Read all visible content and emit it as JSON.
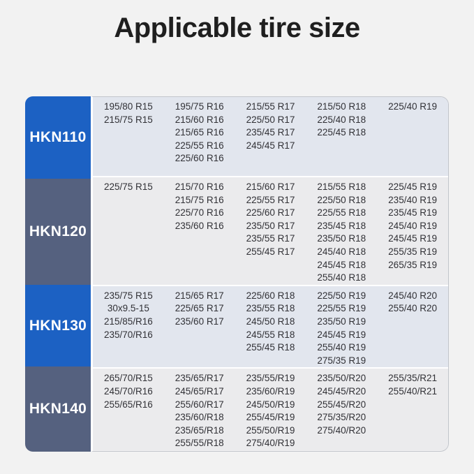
{
  "title": "Applicable tire size",
  "colors": {
    "label_blue": "#1c61c3",
    "label_slate": "#55617f",
    "row_bg_blue_tint": "#e2e6ee",
    "row_bg_gray": "#ebebed"
  },
  "table": {
    "rows": [
      {
        "model": "HKN110",
        "variant": "blue",
        "columns": [
          [
            "195/80 R15",
            "215/75 R15"
          ],
          [
            "195/75 R16",
            "215/60 R16",
            "215/65 R16",
            "225/55 R16",
            "225/60 R16"
          ],
          [
            "215/55 R17",
            "225/50 R17",
            "235/45 R17",
            "245/45 R17"
          ],
          [
            "215/50 R18",
            "225/40 R18",
            "225/45 R18"
          ],
          [
            "225/40 R19"
          ]
        ]
      },
      {
        "model": "HKN120",
        "variant": "slate",
        "columns": [
          [
            "225/75 R15"
          ],
          [
            "215/70 R16",
            "215/75 R16",
            "225/70 R16",
            "235/60 R16"
          ],
          [
            "215/60 R17",
            "225/55 R17",
            "225/60 R17",
            "235/50 R17",
            "235/55 R17",
            "255/45 R17"
          ],
          [
            "215/55 R18",
            "225/50 R18",
            "225/55 R18",
            "235/45 R18",
            "235/50 R18",
            "245/40 R18",
            "245/45 R18",
            "255/40 R18"
          ],
          [
            "225/45 R19",
            "235/40 R19",
            "235/45 R19",
            "245/40 R19",
            "245/45 R19",
            "255/35 R19",
            "265/35 R19"
          ]
        ]
      },
      {
        "model": "HKN130",
        "variant": "blue",
        "columns": [
          [
            "235/75 R15",
            "30x9.5-15",
            "215/85/R16",
            "235/70/R16"
          ],
          [
            "215/65 R17",
            "225/65 R17",
            "235/60 R17"
          ],
          [
            "225/60 R18",
            "235/55 R18",
            "245/50 R18",
            "245/55 R18",
            "255/45 R18"
          ],
          [
            "225/50 R19",
            "225/55 R19",
            "235/50 R19",
            "245/45 R19",
            "255/40 R19",
            "275/35 R19"
          ],
          [
            "245/40 R20",
            "255/40 R20"
          ]
        ]
      },
      {
        "model": "HKN140",
        "variant": "slate",
        "columns": [
          [
            "265/70/R15",
            "245/70/R16",
            "255/65/R16"
          ],
          [
            "235/65/R17",
            "245/65/R17",
            "255/60/R17",
            "235/60/R18",
            "235/65/R18",
            "255/55/R18"
          ],
          [
            "235/55/R19",
            "235/60/R19",
            "245/50/R19",
            "255/45/R19",
            "255/50/R19",
            "275/40/R19"
          ],
          [
            "235/50/R20",
            "245/45/R20",
            "255/45/R20",
            "275/35/R20",
            "275/40/R20"
          ],
          [
            "255/35/R21",
            "255/40/R21"
          ]
        ]
      }
    ]
  }
}
